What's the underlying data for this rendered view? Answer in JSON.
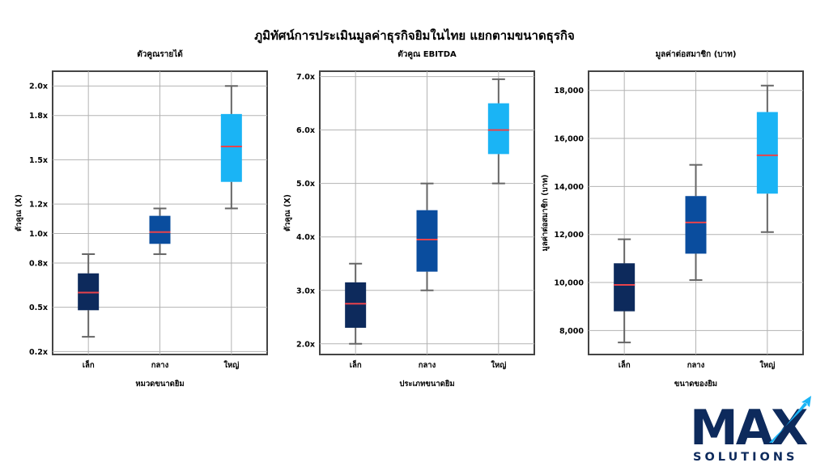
{
  "title": "ภูมิทัศน์การประเมินมูลค่าธุรกิจยิมในไทย แยกตามขนาดธุรกิจ",
  "colors": {
    "small": "#0d2a5c",
    "medium": "#0a4d9e",
    "large": "#1ab4f5",
    "median": "#e8434b",
    "whisker": "#666666"
  },
  "chart_data": [
    {
      "type": "box",
      "title": "ตัวคูณรายได้",
      "xlabel": "หมวดขนาดยิม",
      "ylabel": "ตัวคูณ (X)",
      "categories": [
        "เล็ก",
        "กลาง",
        "ใหญ่"
      ],
      "ylim": [
        0.18,
        2.1
      ],
      "yticks": [
        0.2,
        0.5,
        0.8,
        1.0,
        1.2,
        1.5,
        1.8,
        2.0
      ],
      "yticklabels": [
        "0.2x",
        "0.5x",
        "0.8x",
        "1.0x",
        "1.2x",
        "1.5x",
        "1.8x",
        "2.0x"
      ],
      "boxes": [
        {
          "min": 0.3,
          "q1": 0.48,
          "median": 0.6,
          "q3": 0.73,
          "max": 0.86
        },
        {
          "min": 0.86,
          "q1": 0.93,
          "median": 1.01,
          "q3": 1.12,
          "max": 1.17
        },
        {
          "min": 1.17,
          "q1": 1.35,
          "median": 1.59,
          "q3": 1.81,
          "max": 2.0
        }
      ]
    },
    {
      "type": "box",
      "title": "ตัวคูณ EBITDA",
      "xlabel": "ประเภทขนาดยิม",
      "ylabel": "ตัวคูณ (X)",
      "categories": [
        "เล็ก",
        "กลาง",
        "ใหญ่"
      ],
      "ylim": [
        1.8,
        7.1
      ],
      "yticks": [
        2.0,
        3.0,
        4.0,
        5.0,
        6.0,
        7.0
      ],
      "yticklabels": [
        "2.0x",
        "3.0x",
        "4.0x",
        "5.0x",
        "6.0x",
        "7.0x"
      ],
      "boxes": [
        {
          "min": 2.0,
          "q1": 2.3,
          "median": 2.75,
          "q3": 3.15,
          "max": 3.5
        },
        {
          "min": 3.0,
          "q1": 3.35,
          "median": 3.95,
          "q3": 4.5,
          "max": 5.0
        },
        {
          "min": 5.0,
          "q1": 5.55,
          "median": 6.0,
          "q3": 6.5,
          "max": 6.95
        }
      ]
    },
    {
      "type": "box",
      "title": "มูลค่าต่อสมาชิก (บาท)",
      "xlabel": "ขนาดของยิม",
      "ylabel": "มูลค่าต่อสมาชิก (บาท)",
      "categories": [
        "เล็ก",
        "กลาง",
        "ใหญ่"
      ],
      "ylim": [
        7000,
        18800
      ],
      "yticks": [
        8000,
        10000,
        12000,
        14000,
        16000,
        18000
      ],
      "yticklabels": [
        "8,000",
        "10,000",
        "12,000",
        "14,000",
        "16,000",
        "18,000"
      ],
      "boxes": [
        {
          "min": 7500,
          "q1": 8800,
          "median": 9900,
          "q3": 10800,
          "max": 11800
        },
        {
          "min": 10100,
          "q1": 11200,
          "median": 12500,
          "q3": 13600,
          "max": 14900
        },
        {
          "min": 12100,
          "q1": 13700,
          "median": 15300,
          "q3": 17100,
          "max": 18200
        }
      ]
    }
  ],
  "logo": {
    "word": "MAX",
    "sub": "SOLUTIONS"
  }
}
